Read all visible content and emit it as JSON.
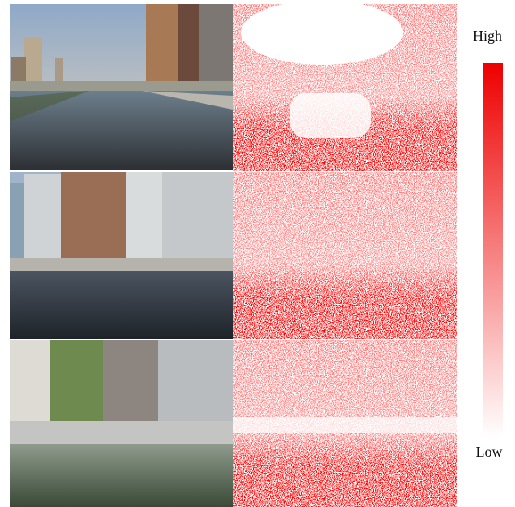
{
  "colorbar": {
    "high": "High",
    "low": "Low"
  }
}
